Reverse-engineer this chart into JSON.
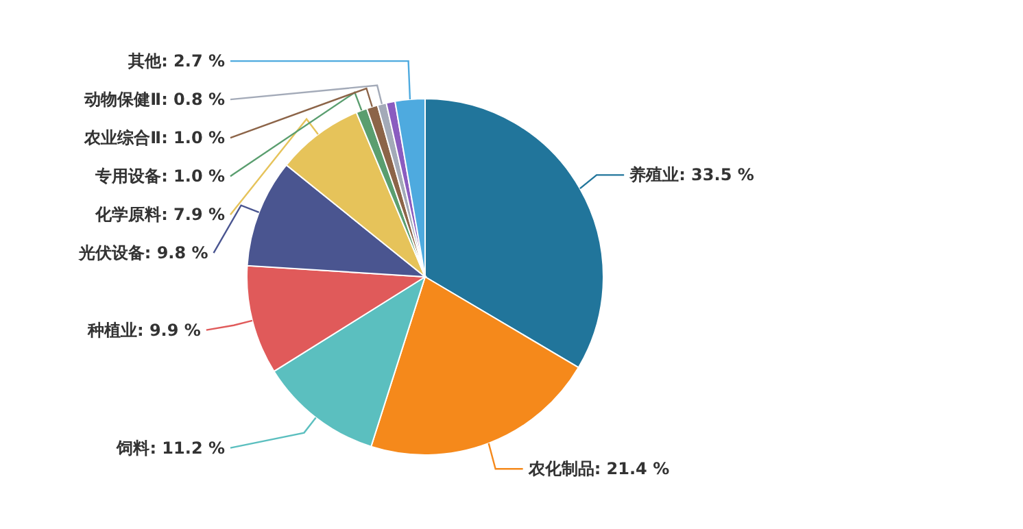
{
  "chart_data": {
    "type": "pie",
    "categories": [
      "养殖业",
      "农化制品",
      "饲料",
      "种植业",
      "光伏设备",
      "化学原料",
      "专用设备",
      "农业综合Ⅱ",
      "动物保健Ⅱ",
      null,
      "其他"
    ],
    "values": [
      33.5,
      21.4,
      11.2,
      9.9,
      9.8,
      7.9,
      1.0,
      1.0,
      0.8,
      0.8,
      2.7
    ],
    "colors": [
      "#21759b",
      "#f5891b",
      "#5bbfbf",
      "#e05a5a",
      "#4a5590",
      "#e6c35a",
      "#5a9e6f",
      "#8c6448",
      "#a3aab8",
      "#8a5cc0",
      "#4eaadf"
    ],
    "value_labels": [
      ": 33.5 %",
      ": 21.4 %",
      ": 11.2 %",
      ": 9.9 %",
      ": 9.8 %",
      ": 7.9 %",
      ": 1.0 %",
      ": 1.0 %",
      ": 0.8 %",
      null,
      ": 2.7 %"
    ]
  }
}
